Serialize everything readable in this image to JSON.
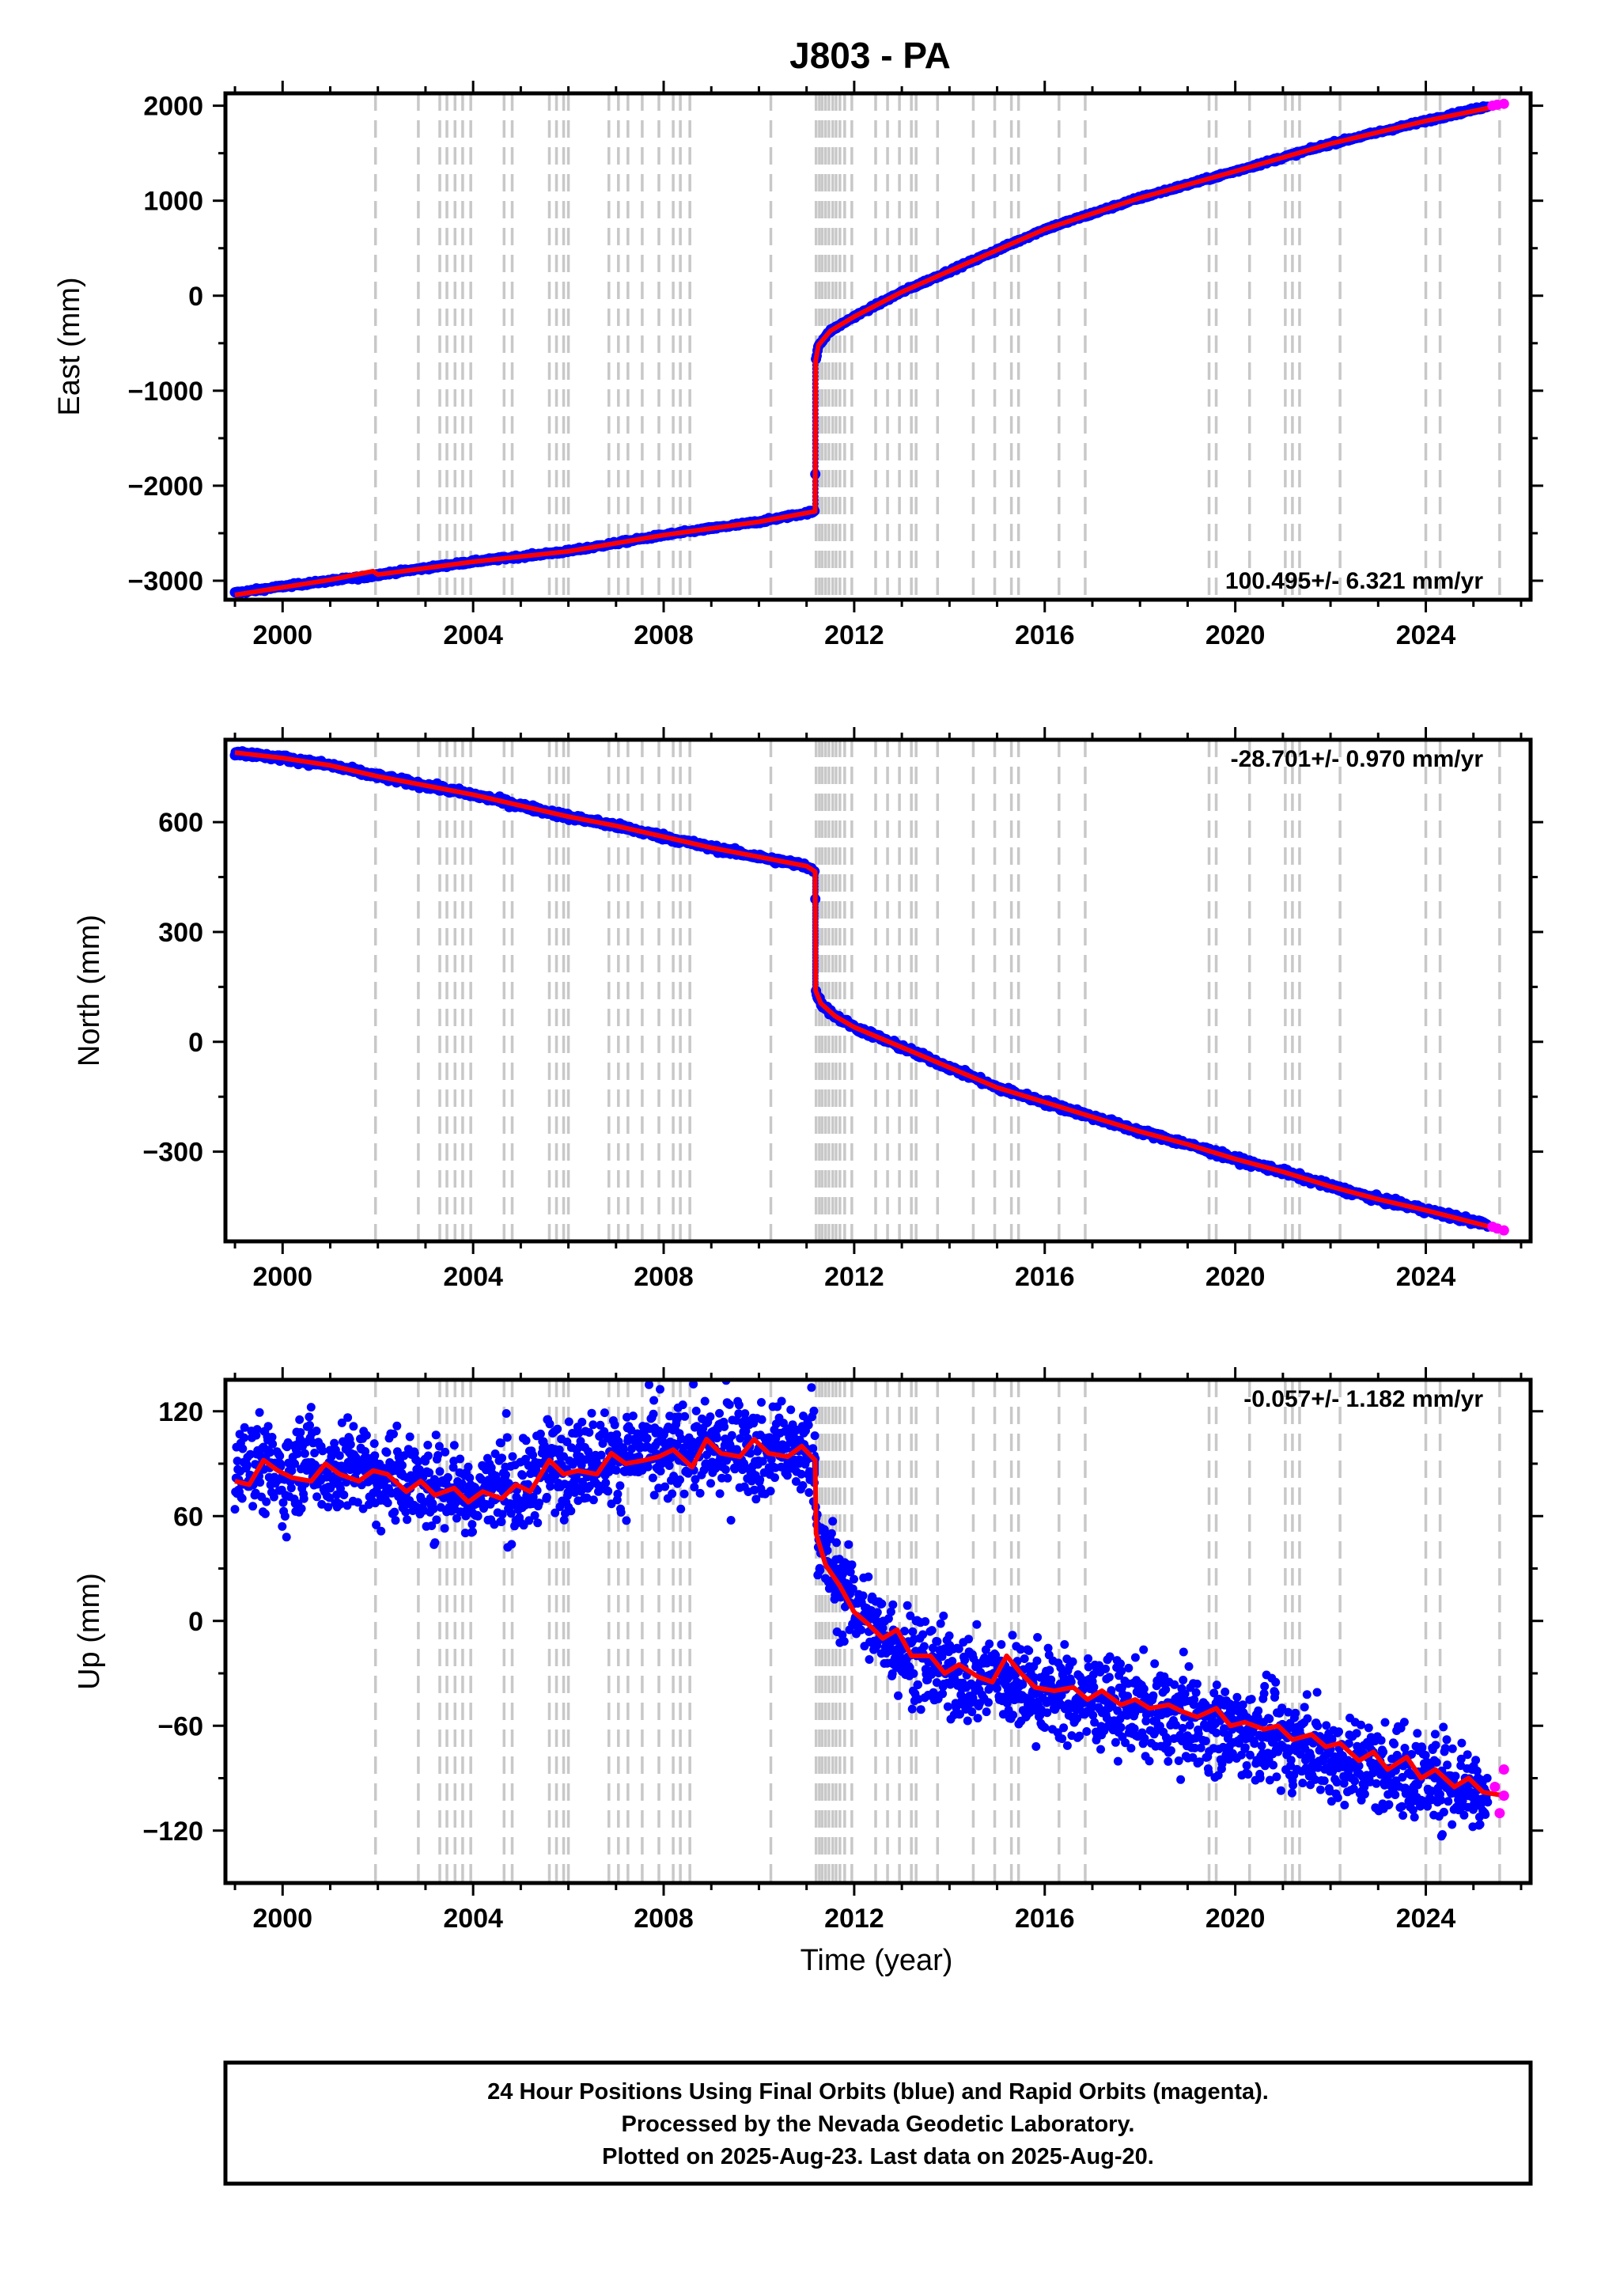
{
  "title": "J803 - PA",
  "xlabel": "Time (year)",
  "footer": {
    "line1": "24 Hour Positions Using Final Orbits (blue) and Rapid Orbits (magenta).",
    "line2": "Processed by the Nevada Geodetic Laboratory.",
    "line3": "Plotted on 2025-Aug-23. Last data on 2025-Aug-20."
  },
  "colors": {
    "final_orbits": "#0000ff",
    "rapid_orbits": "#ff00ff",
    "model": "#ff0000",
    "event_lines": "#c8c8c8"
  },
  "chart_data": [
    {
      "type": "scatter",
      "panel": "east",
      "ylabel": "East (mm)",
      "rate": "100.495+/- 6.321 mm/yr",
      "xlim": [
        1998.8,
        2026.2
      ],
      "ylim": [
        -3200,
        2130
      ],
      "xticks": [
        2000,
        2004,
        2008,
        2012,
        2016,
        2020,
        2024
      ],
      "yticks": [
        -3000,
        -2000,
        -1000,
        0,
        1000,
        2000
      ],
      "yticklabels": [
        "−3000",
        "−2000",
        "−1000",
        "0",
        "1000",
        "2000"
      ],
      "grid": false,
      "series": [
        {
          "role": "final",
          "x": [
            1999.0,
            2000.0,
            2001.0,
            2001.9,
            2002.0,
            2004.0,
            2006.0,
            2008.0,
            2010.0,
            2011.18,
            2011.19,
            2011.25,
            2011.5,
            2012.0,
            2013.0,
            2014.0,
            2016.0,
            2018.0,
            2020.0,
            2022.0,
            2024.0,
            2025.3
          ],
          "y": [
            -3130,
            -3060,
            -3000,
            -2950,
            -2935,
            -2800,
            -2690,
            -2520,
            -2380,
            -2270,
            -690,
            -520,
            -370,
            -220,
            40,
            260,
            700,
            1030,
            1310,
            1600,
            1840,
            1995
          ]
        },
        {
          "role": "rapid",
          "x": [
            2025.4,
            2025.5,
            2025.64
          ],
          "y": [
            2000,
            2010,
            2020
          ]
        }
      ],
      "model": {
        "x": [
          1999.0,
          2000.0,
          2001.0,
          2001.9,
          2002.0,
          2004.0,
          2006.0,
          2008.0,
          2010.0,
          2011.18,
          2011.19,
          2011.25,
          2011.5,
          2012.0,
          2013.0,
          2014.0,
          2016.0,
          2018.0,
          2020.0,
          2022.0,
          2024.0,
          2025.64
        ],
        "y": [
          -3150,
          -3070,
          -2990,
          -2900,
          -2935,
          -2800,
          -2690,
          -2520,
          -2380,
          -2270,
          -690,
          -520,
          -370,
          -220,
          40,
          260,
          700,
          1030,
          1310,
          1600,
          1840,
          2010
        ]
      }
    },
    {
      "type": "scatter",
      "panel": "north",
      "ylabel": "North (mm)",
      "rate": "-28.701+/- 0.970 mm/yr",
      "xlim": [
        1998.8,
        2026.2
      ],
      "ylim": [
        -545,
        825
      ],
      "xticks": [
        2000,
        2004,
        2008,
        2012,
        2016,
        2020,
        2024
      ],
      "yticks": [
        -300,
        0,
        300,
        600
      ],
      "yticklabels": [
        "−300",
        "0",
        "300",
        "600"
      ],
      "grid": false,
      "series": [
        {
          "role": "final",
          "x": [
            1999.0,
            2000.0,
            2001.0,
            2002.0,
            2003.0,
            2004.0,
            2005.0,
            2006.0,
            2007.0,
            2008.0,
            2009.0,
            2010.0,
            2011.0,
            2011.18,
            2011.19,
            2011.3,
            2011.6,
            2012.0,
            2013.0,
            2014.0,
            2015.0,
            2016.0,
            2017.0,
            2018.0,
            2019.0,
            2020.0,
            2021.0,
            2022.0,
            2023.0,
            2024.0,
            2025.3
          ],
          "y": [
            790,
            775,
            755,
            725,
            700,
            675,
            645,
            615,
            590,
            560,
            530,
            505,
            480,
            465,
            140,
            105,
            70,
            40,
            -15,
            -70,
            -125,
            -165,
            -205,
            -245,
            -280,
            -320,
            -355,
            -395,
            -430,
            -460,
            -500
          ]
        },
        {
          "role": "rapid",
          "x": [
            2025.4,
            2025.5,
            2025.64
          ],
          "y": [
            -505,
            -510,
            -515
          ]
        }
      ],
      "model": {
        "x": [
          1999.0,
          2000.0,
          2001.0,
          2002.0,
          2003.0,
          2004.0,
          2005.0,
          2006.0,
          2007.0,
          2008.0,
          2009.0,
          2010.0,
          2011.0,
          2011.18,
          2011.19,
          2011.3,
          2011.6,
          2012.0,
          2013.0,
          2014.0,
          2015.0,
          2016.0,
          2017.0,
          2018.0,
          2019.0,
          2020.0,
          2021.0,
          2022.0,
          2023.0,
          2024.0,
          2025.64
        ],
        "y": [
          790,
          775,
          755,
          725,
          700,
          675,
          645,
          615,
          590,
          560,
          530,
          505,
          480,
          465,
          140,
          105,
          70,
          40,
          -15,
          -70,
          -125,
          -165,
          -205,
          -245,
          -280,
          -320,
          -355,
          -395,
          -430,
          -460,
          -515
        ]
      }
    },
    {
      "type": "scatter",
      "panel": "up",
      "ylabel": "Up (mm)",
      "rate": "-0.057+/- 1.182 mm/yr",
      "xlim": [
        1998.8,
        2026.2
      ],
      "ylim": [
        -150,
        138
      ],
      "xticks": [
        2000,
        2004,
        2008,
        2012,
        2016,
        2020,
        2024
      ],
      "yticks": [
        -120,
        -60,
        0,
        60,
        120
      ],
      "yticklabels": [
        "−120",
        "−60",
        "0",
        "60",
        "120"
      ],
      "grid": false,
      "series": [
        {
          "role": "final",
          "x": [
            1999.0,
            1999.5,
            2000.0,
            2000.5,
            2001.0,
            2001.5,
            2002.0,
            2002.5,
            2003.0,
            2003.5,
            2004.0,
            2004.5,
            2005.0,
            2005.5,
            2006.0,
            2006.5,
            2007.0,
            2007.5,
            2008.0,
            2008.5,
            2009.0,
            2009.5,
            2010.0,
            2010.5,
            2011.0,
            2011.18,
            2011.22,
            2011.4,
            2011.7,
            2012.0,
            2012.5,
            2013.0,
            2013.5,
            2014.0,
            2014.5,
            2015.0,
            2015.5,
            2016.0,
            2016.5,
            2017.0,
            2017.5,
            2018.0,
            2018.5,
            2019.0,
            2019.5,
            2020.0,
            2020.5,
            2021.0,
            2021.5,
            2022.0,
            2022.5,
            2023.0,
            2023.5,
            2024.0,
            2024.5,
            2025.0,
            2025.3
          ],
          "y": [
            85,
            92,
            80,
            95,
            85,
            90,
            80,
            85,
            75,
            80,
            70,
            78,
            73,
            90,
            88,
            95,
            92,
            98,
            92,
            100,
            96,
            104,
            95,
            100,
            94,
            95,
            50,
            35,
            20,
            10,
            -5,
            -15,
            -25,
            -30,
            -35,
            -30,
            -40,
            -40,
            -45,
            -45,
            -50,
            -50,
            -55,
            -55,
            -60,
            -62,
            -65,
            -70,
            -70,
            -78,
            -80,
            -85,
            -85,
            -90,
            -90,
            -95,
            -100
          ]
        },
        {
          "role": "rapid",
          "x": [
            2025.45,
            2025.55,
            2025.64,
            2025.64
          ],
          "y": [
            -95,
            -110,
            -85,
            -100
          ]
        }
      ],
      "model": {
        "x": [
          1999.0,
          1999.3,
          1999.6,
          1999.9,
          2000.2,
          2000.6,
          2000.9,
          2001.2,
          2001.6,
          2001.9,
          2002.2,
          2002.6,
          2002.9,
          2003.2,
          2003.6,
          2003.9,
          2004.2,
          2004.6,
          2004.9,
          2005.2,
          2005.6,
          2005.9,
          2006.2,
          2006.6,
          2006.9,
          2007.2,
          2007.6,
          2007.9,
          2008.2,
          2008.6,
          2008.9,
          2009.2,
          2009.6,
          2009.9,
          2010.2,
          2010.6,
          2010.9,
          2011.18,
          2011.2,
          2011.4,
          2011.7,
          2012.0,
          2012.3,
          2012.6,
          2012.9,
          2013.2,
          2013.6,
          2013.9,
          2014.2,
          2014.6,
          2014.9,
          2015.2,
          2015.5,
          2015.8,
          2016.2,
          2016.6,
          2016.9,
          2017.2,
          2017.6,
          2017.9,
          2018.2,
          2018.6,
          2018.9,
          2019.2,
          2019.6,
          2019.9,
          2020.2,
          2020.6,
          2020.9,
          2021.2,
          2021.6,
          2021.9,
          2022.2,
          2022.6,
          2022.9,
          2023.2,
          2023.6,
          2023.9,
          2024.2,
          2024.6,
          2024.9,
          2025.2,
          2025.64
        ],
        "y": [
          80,
          78,
          92,
          86,
          82,
          80,
          90,
          84,
          80,
          86,
          84,
          74,
          80,
          72,
          76,
          68,
          74,
          70,
          78,
          74,
          92,
          84,
          86,
          84,
          96,
          90,
          92,
          94,
          98,
          88,
          104,
          96,
          94,
          104,
          96,
          94,
          100,
          92,
          50,
          32,
          20,
          5,
          -2,
          -10,
          -5,
          -20,
          -20,
          -30,
          -25,
          -32,
          -35,
          -20,
          -30,
          -38,
          -40,
          -38,
          -45,
          -40,
          -48,
          -45,
          -50,
          -48,
          -52,
          -55,
          -50,
          -60,
          -58,
          -62,
          -60,
          -68,
          -65,
          -72,
          -70,
          -80,
          -75,
          -85,
          -78,
          -90,
          -85,
          -95,
          -90,
          -98,
          -100
        ]
      }
    }
  ],
  "event_years": [
    2001.95,
    2002.85,
    2003.3,
    2003.45,
    2003.62,
    2003.78,
    2003.95,
    2004.65,
    2004.82,
    2005.6,
    2005.75,
    2005.9,
    2006.0,
    2006.85,
    2007.05,
    2007.25,
    2007.55,
    2007.9,
    2008.2,
    2008.35,
    2008.55,
    2010.25,
    2011.2,
    2011.27,
    2011.33,
    2011.4,
    2011.47,
    2011.55,
    2011.62,
    2011.7,
    2011.8,
    2011.95,
    2012.45,
    2012.7,
    2012.95,
    2013.2,
    2013.3,
    2013.75,
    2014.5,
    2014.95,
    2015.3,
    2015.45,
    2016.3,
    2016.85,
    2019.45,
    2019.6,
    2020.3,
    2021.05,
    2021.2,
    2021.35,
    2022.2,
    2024.0,
    2024.3,
    2025.55
  ]
}
